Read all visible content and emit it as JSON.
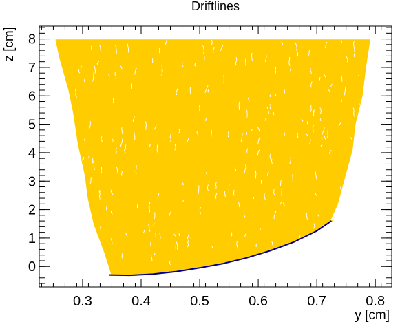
{
  "chart_data": {
    "type": "line",
    "title": "Driftlines",
    "xlabel": "y [cm]",
    "ylabel": "z [cm]",
    "xlim": [
      0.226,
      0.828
    ],
    "ylim": [
      -0.72,
      8.45
    ],
    "x_ticks": [
      0.3,
      0.4,
      0.5,
      0.6,
      0.7,
      0.8
    ],
    "y_ticks": [
      0,
      1,
      2,
      3,
      4,
      5,
      6,
      7,
      8
    ],
    "grid": false,
    "legend": "none",
    "series": [
      {
        "kind": "driftlines-fill",
        "color": "#ffcc00",
        "top_z": 7.96,
        "left_edge": [
          [
            0.255,
            7.95
          ],
          [
            0.262,
            7.3
          ],
          [
            0.277,
            6.2
          ],
          [
            0.285,
            5.4
          ],
          [
            0.293,
            4.3
          ],
          [
            0.305,
            3.2
          ],
          [
            0.31,
            2.4
          ],
          [
            0.32,
            1.5
          ],
          [
            0.338,
            0.5
          ],
          [
            0.35,
            -0.28
          ]
        ],
        "right_edge": [
          [
            0.79,
            7.95
          ],
          [
            0.783,
            7.0
          ],
          [
            0.777,
            6.0
          ],
          [
            0.765,
            5.0
          ],
          [
            0.76,
            4.1
          ],
          [
            0.748,
            3.2
          ],
          [
            0.735,
            2.2
          ],
          [
            0.722,
            1.6
          ]
        ]
      },
      {
        "kind": "electrode-curve",
        "color": "#000099",
        "x": [
          0.345,
          0.38,
          0.42,
          0.46,
          0.5,
          0.54,
          0.58,
          0.62,
          0.66,
          0.7,
          0.725
        ],
        "y": [
          -0.3,
          -0.31,
          -0.27,
          -0.18,
          -0.05,
          0.1,
          0.3,
          0.55,
          0.85,
          1.25,
          1.6
        ]
      }
    ]
  }
}
